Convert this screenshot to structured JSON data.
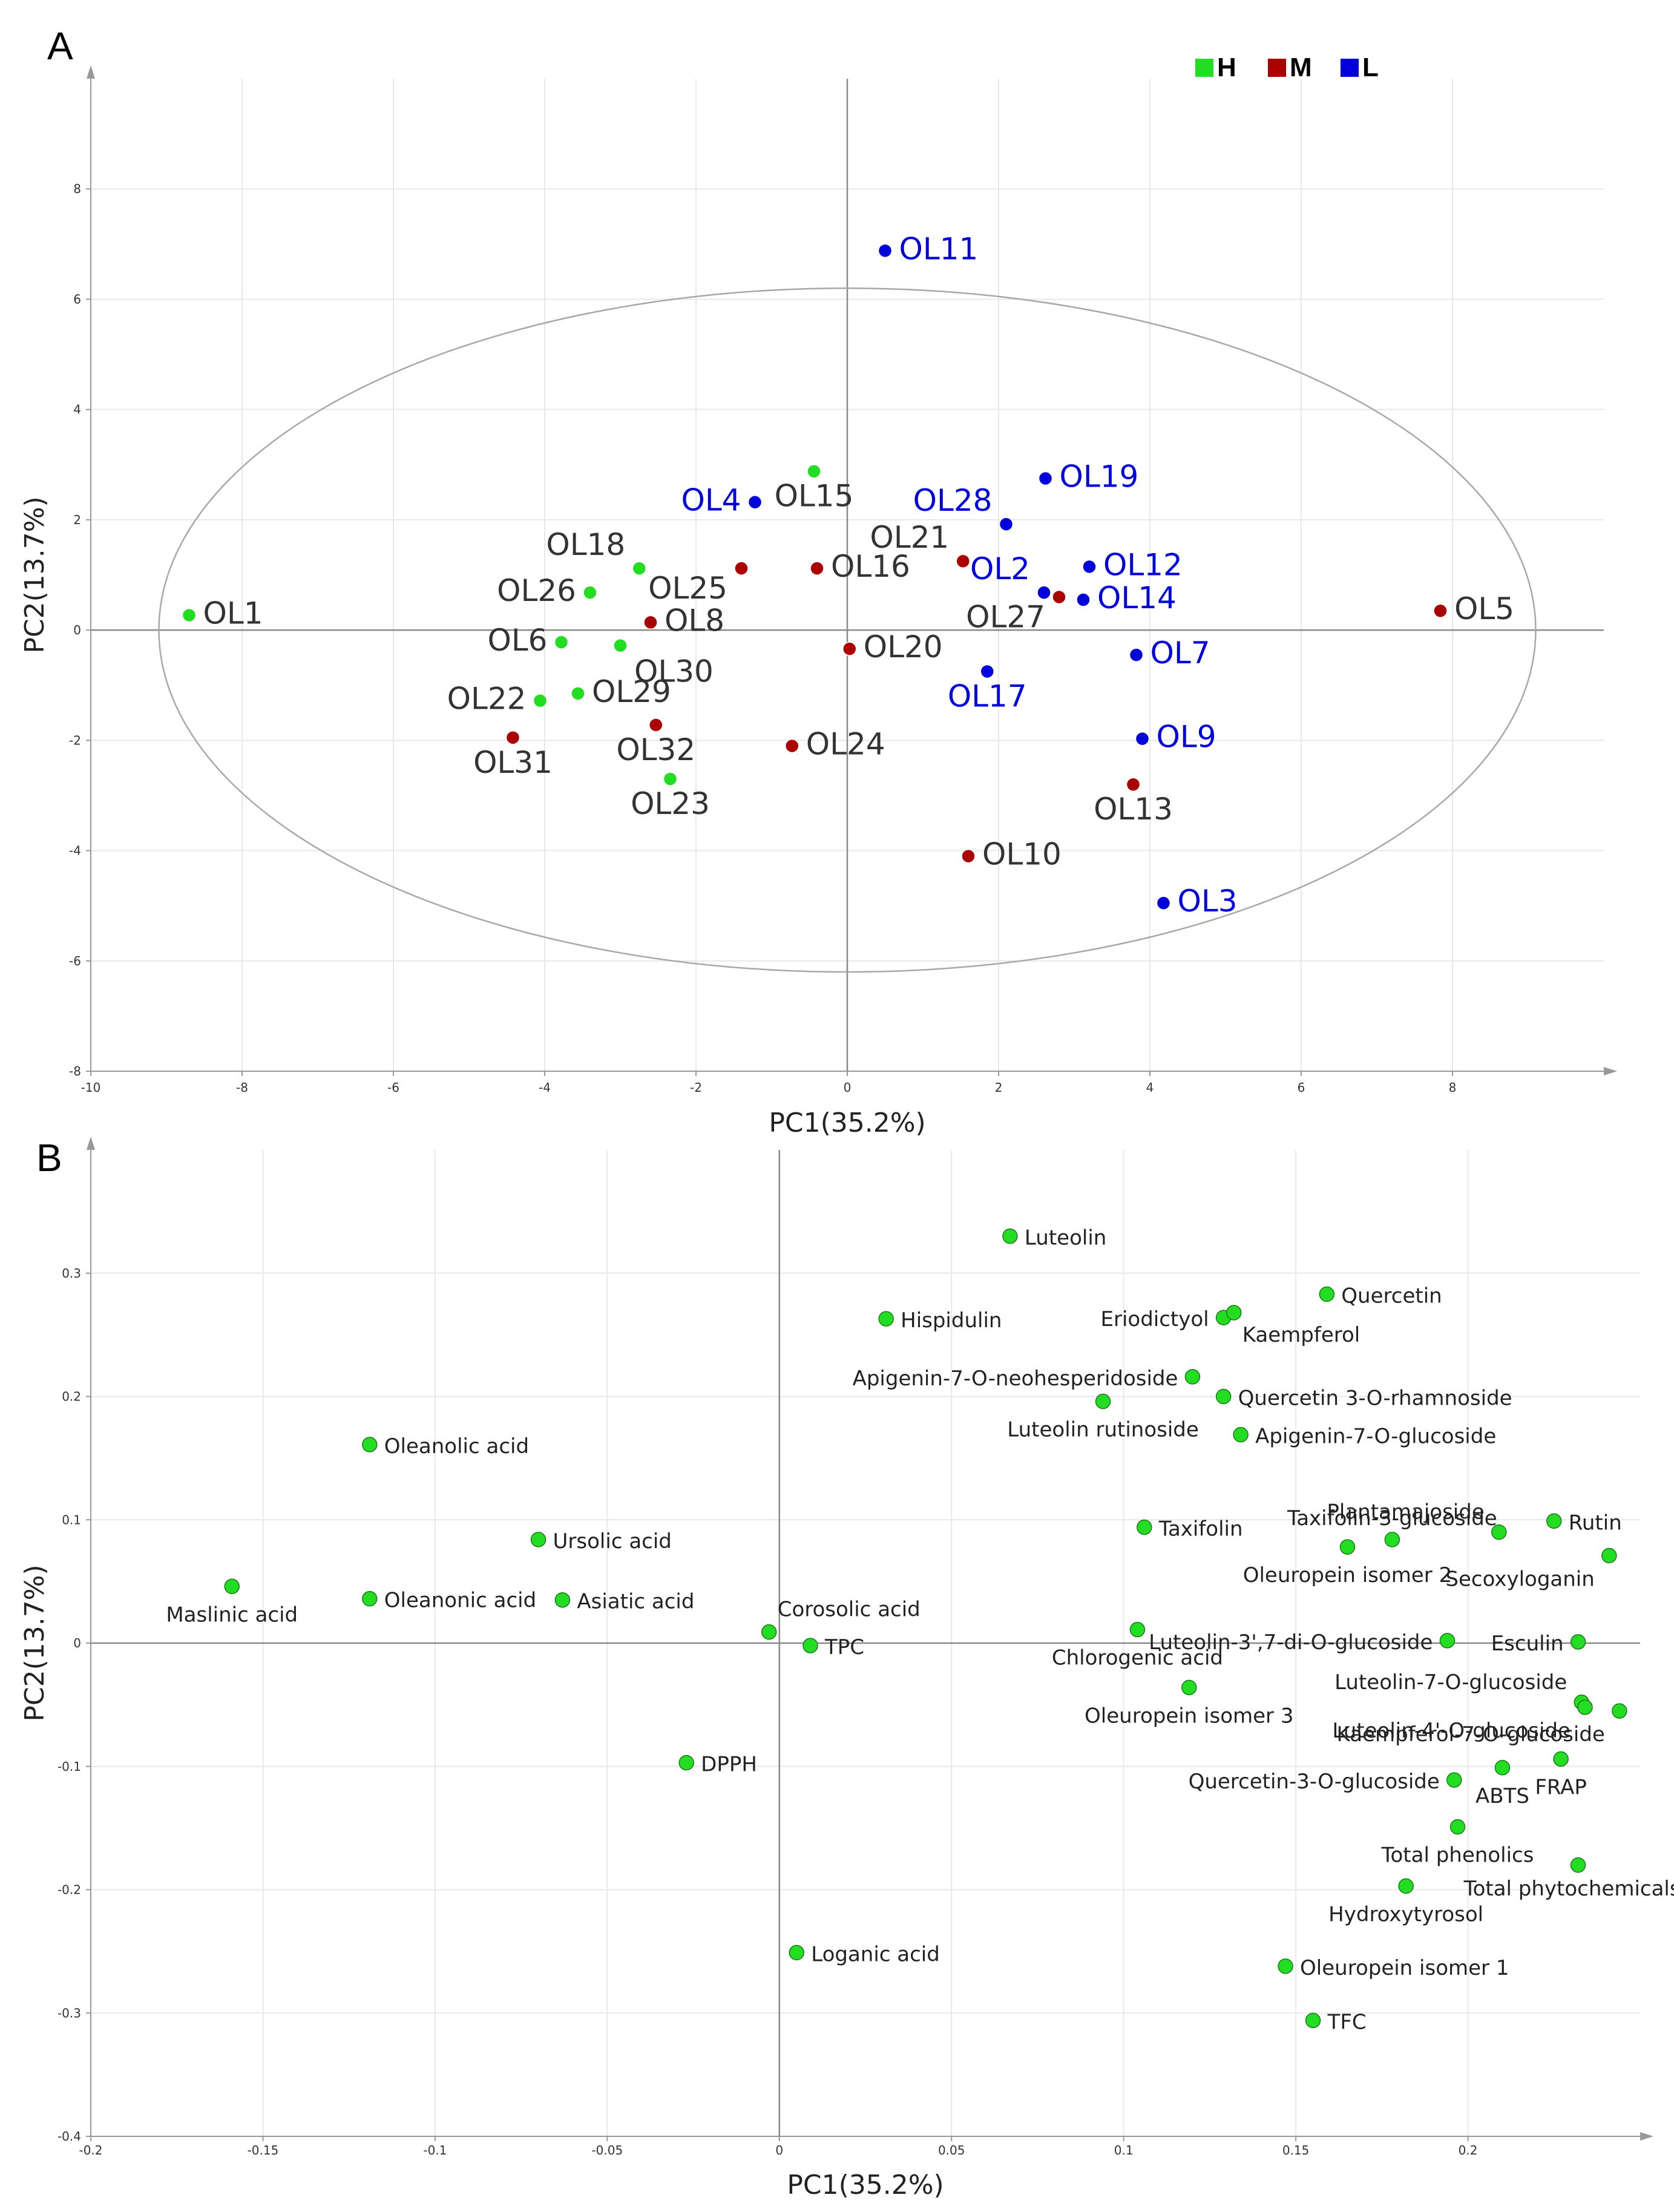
{
  "colors": {
    "H": "#22dd22",
    "M": "#aa0000",
    "L": "#0000dd",
    "text_HM": "#333333"
  },
  "chart_data": [
    {
      "panel": "A",
      "type": "scatter",
      "xlabel": "PC1(35.2%)",
      "ylabel": "PC2(13.7%)",
      "xlim": [
        -10,
        10
      ],
      "ylim": [
        -8,
        10
      ],
      "xticks": [
        -10,
        -8,
        -6,
        -4,
        -2,
        0,
        2,
        4,
        6,
        8
      ],
      "yticks": [
        -8,
        -6,
        -4,
        -2,
        0,
        2,
        4,
        6,
        8
      ],
      "ellipse": {
        "center": [
          0,
          0
        ],
        "rx": 9.1,
        "ry": 6.2
      },
      "legend": {
        "position": "top-right",
        "entries": [
          {
            "key": "H",
            "label": "H"
          },
          {
            "key": "M",
            "label": "M"
          },
          {
            "key": "L",
            "label": "L"
          }
        ]
      },
      "points": [
        {
          "label": "OL1",
          "group": "H",
          "x": -8.7,
          "y": 0.27,
          "anchor": "right"
        },
        {
          "label": "OL15",
          "group": "H",
          "x": -0.44,
          "y": 2.88,
          "anchor": "below"
        },
        {
          "label": "OL18",
          "group": "H",
          "x": -2.75,
          "y": 1.12,
          "anchor": "upleft"
        },
        {
          "label": "OL26",
          "group": "H",
          "x": -3.4,
          "y": 0.68,
          "anchor": "left"
        },
        {
          "label": "OL6",
          "group": "H",
          "x": -3.78,
          "y": -0.22,
          "anchor": "left"
        },
        {
          "label": "OL30",
          "group": "H",
          "x": -3.0,
          "y": -0.28,
          "anchor": "downright"
        },
        {
          "label": "OL22",
          "group": "H",
          "x": -4.06,
          "y": -1.28,
          "anchor": "left"
        },
        {
          "label": "OL29",
          "group": "H",
          "x": -3.56,
          "y": -1.15,
          "anchor": "right"
        },
        {
          "label": "OL23",
          "group": "H",
          "x": -2.34,
          "y": -2.7,
          "anchor": "below"
        },
        {
          "label": "OL8",
          "group": "M",
          "x": -2.6,
          "y": 0.14,
          "anchor": "right"
        },
        {
          "label": "OL25",
          "group": "M",
          "x": -1.4,
          "y": 1.12,
          "anchor": "belowleft"
        },
        {
          "label": "OL16",
          "group": "M",
          "x": -0.4,
          "y": 1.12,
          "anchor": "right"
        },
        {
          "label": "OL21",
          "group": "M",
          "x": 1.53,
          "y": 1.25,
          "anchor": "upleft"
        },
        {
          "label": "OL20",
          "group": "M",
          "x": 0.03,
          "y": -0.34,
          "anchor": "right"
        },
        {
          "label": "OL24",
          "group": "M",
          "x": -0.73,
          "y": -2.1,
          "anchor": "right"
        },
        {
          "label": "OL32",
          "group": "M",
          "x": -2.53,
          "y": -1.72,
          "anchor": "below"
        },
        {
          "label": "OL31",
          "group": "M",
          "x": -4.42,
          "y": -1.95,
          "anchor": "below"
        },
        {
          "label": "OL27",
          "group": "M",
          "x": 2.8,
          "y": 0.6,
          "anchor": "belowleft"
        },
        {
          "label": "OL13",
          "group": "M",
          "x": 3.78,
          "y": -2.8,
          "anchor": "below"
        },
        {
          "label": "OL10",
          "group": "M",
          "x": 1.6,
          "y": -4.1,
          "anchor": "right"
        },
        {
          "label": "OL5",
          "group": "M",
          "x": 7.84,
          "y": 0.35,
          "anchor": "right"
        },
        {
          "label": "OL11",
          "group": "L",
          "x": 0.5,
          "y": 6.88,
          "anchor": "right"
        },
        {
          "label": "OL4",
          "group": "L",
          "x": -1.22,
          "y": 2.32,
          "anchor": "left"
        },
        {
          "label": "OL28",
          "group": "L",
          "x": 2.1,
          "y": 1.92,
          "anchor": "upleft"
        },
        {
          "label": "OL19",
          "group": "L",
          "x": 2.62,
          "y": 2.75,
          "anchor": "right"
        },
        {
          "label": "OL2",
          "group": "L",
          "x": 2.6,
          "y": 0.68,
          "anchor": "upleft"
        },
        {
          "label": "OL12",
          "group": "L",
          "x": 3.2,
          "y": 1.15,
          "anchor": "right"
        },
        {
          "label": "OL14",
          "group": "L",
          "x": 3.12,
          "y": 0.55,
          "anchor": "right"
        },
        {
          "label": "OL7",
          "group": "L",
          "x": 3.82,
          "y": -0.45,
          "anchor": "right"
        },
        {
          "label": "OL17",
          "group": "L",
          "x": 1.85,
          "y": -0.75,
          "anchor": "below"
        },
        {
          "label": "OL9",
          "group": "L",
          "x": 3.9,
          "y": -1.97,
          "anchor": "right"
        },
        {
          "label": "OL3",
          "group": "L",
          "x": 4.18,
          "y": -4.95,
          "anchor": "right"
        }
      ]
    },
    {
      "panel": "B",
      "type": "scatter",
      "xlabel": "PC1(35.2%)",
      "ylabel": "PC2(13.7%)",
      "xlim": [
        -0.2,
        0.25
      ],
      "ylim": [
        -0.4,
        0.4
      ],
      "xticks": [
        -0.2,
        -0.15,
        -0.1,
        -0.05,
        0,
        0.05,
        0.1,
        0.15,
        0.2
      ],
      "yticks": [
        -0.4,
        -0.3,
        -0.2,
        -0.1,
        0,
        0.1,
        0.2,
        0.3
      ],
      "points": [
        {
          "label": "Luteolin",
          "x": 0.067,
          "y": 0.33,
          "anchor": "right"
        },
        {
          "label": "Quercetin",
          "x": 0.159,
          "y": 0.283,
          "anchor": "right"
        },
        {
          "label": "Hispidulin",
          "x": 0.031,
          "y": 0.263,
          "anchor": "right"
        },
        {
          "label": "Eriodictyol",
          "x": 0.129,
          "y": 0.264,
          "anchor": "left"
        },
        {
          "label": "Kaempferol",
          "x": 0.132,
          "y": 0.268,
          "anchor": "belowright"
        },
        {
          "label": "Apigenin-7-O-neohesperidoside",
          "x": 0.12,
          "y": 0.216,
          "anchor": "left"
        },
        {
          "label": "Quercetin 3-O-rhamnoside",
          "x": 0.129,
          "y": 0.2,
          "anchor": "right"
        },
        {
          "label": "Luteolin rutinoside",
          "x": 0.094,
          "y": 0.196,
          "anchor": "below"
        },
        {
          "label": "Apigenin-7-O-glucoside",
          "x": 0.134,
          "y": 0.169,
          "anchor": "right"
        },
        {
          "label": "Oleanolic acid",
          "x": -0.119,
          "y": 0.161,
          "anchor": "right"
        },
        {
          "label": "Ursolic acid",
          "x": -0.07,
          "y": 0.084,
          "anchor": "right"
        },
        {
          "label": "Maslinic acid",
          "x": -0.159,
          "y": 0.046,
          "anchor": "below"
        },
        {
          "label": "Oleanonic acid",
          "x": -0.119,
          "y": 0.036,
          "anchor": "right"
        },
        {
          "label": "Asiatic acid",
          "x": -0.063,
          "y": 0.035,
          "anchor": "right"
        },
        {
          "label": "Corosolic acid",
          "x": -0.003,
          "y": 0.009,
          "anchor": "upright"
        },
        {
          "label": "TPC",
          "x": 0.009,
          "y": -0.002,
          "anchor": "right"
        },
        {
          "label": "DPPH",
          "x": -0.027,
          "y": -0.097,
          "anchor": "right"
        },
        {
          "label": "Loganic acid",
          "x": 0.005,
          "y": -0.251,
          "anchor": "right"
        },
        {
          "label": "Taxifolin",
          "x": 0.106,
          "y": 0.094,
          "anchor": "right"
        },
        {
          "label": "Chlorogenic acid",
          "x": 0.104,
          "y": 0.011,
          "anchor": "below"
        },
        {
          "label": "Oleuropein isomer 3",
          "x": 0.119,
          "y": -0.036,
          "anchor": "below"
        },
        {
          "label": "Taxifolin-3-glucoside",
          "x": 0.178,
          "y": 0.084,
          "anchor": "up"
        },
        {
          "label": "Plantamajoside",
          "x": 0.209,
          "y": 0.09,
          "anchor": "upleft"
        },
        {
          "label": "Oleuropein isomer 2",
          "x": 0.165,
          "y": 0.078,
          "anchor": "below"
        },
        {
          "label": "Rutin",
          "x": 0.225,
          "y": 0.099,
          "anchor": "right"
        },
        {
          "label": "Secoxyloganin",
          "x": 0.241,
          "y": 0.071,
          "anchor": "belowleft"
        },
        {
          "label": "Luteolin-3',7-di-O-glucoside",
          "x": 0.194,
          "y": 0.002,
          "anchor": "left"
        },
        {
          "label": "Esculin",
          "x": 0.232,
          "y": 0.001,
          "anchor": "left"
        },
        {
          "label": "Luteolin-7-O-glucoside",
          "x": 0.233,
          "y": -0.048,
          "anchor": "upleft"
        },
        {
          "label": "Luteolin-4'-O-glucoside",
          "x": 0.234,
          "y": -0.052,
          "anchor": "belowleft"
        },
        {
          "label": "Kaempferol-7-O-glucoside",
          "x": 0.244,
          "y": -0.055,
          "anchor": "belowleft"
        },
        {
          "label": "FRAP",
          "x": 0.227,
          "y": -0.094,
          "anchor": "below"
        },
        {
          "label": "ABTS",
          "x": 0.21,
          "y": -0.101,
          "anchor": "below"
        },
        {
          "label": "Quercetin-3-O-glucoside",
          "x": 0.196,
          "y": -0.111,
          "anchor": "left"
        },
        {
          "label": "Total phenolics",
          "x": 0.197,
          "y": -0.149,
          "anchor": "below"
        },
        {
          "label": "Total phytochemicals",
          "x": 0.232,
          "y": -0.18,
          "anchor": "belowcenter"
        },
        {
          "label": "Hydroxytyrosol",
          "x": 0.182,
          "y": -0.197,
          "anchor": "below"
        },
        {
          "label": "Oleuropein isomer 1",
          "x": 0.147,
          "y": -0.262,
          "anchor": "right"
        },
        {
          "label": "TFC",
          "x": 0.155,
          "y": -0.306,
          "anchor": "right"
        }
      ]
    }
  ],
  "panel_labels": {
    "a": "A",
    "b": "B"
  }
}
